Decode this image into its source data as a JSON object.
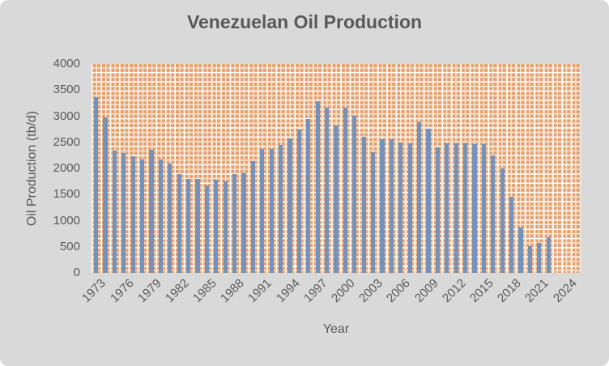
{
  "chart_data": {
    "type": "bar",
    "title": "Venezuelan Oil Production",
    "xlabel": "Year",
    "ylabel": "Oil Production (tb/d)",
    "ylim": [
      0,
      4000
    ],
    "ytick_interval": 500,
    "yticks": [
      0,
      500,
      1000,
      1500,
      2000,
      2500,
      3000,
      3500,
      4000
    ],
    "xtick_label_every": 3,
    "xtick_labels": [
      "1973",
      "1976",
      "1979",
      "1982",
      "1985",
      "1988",
      "1991",
      "1994",
      "1997",
      "2000",
      "2003",
      "2006",
      "2009",
      "2012",
      "2015",
      "2018",
      "2021",
      "2024"
    ],
    "categories": [
      1973,
      1974,
      1975,
      1976,
      1977,
      1978,
      1979,
      1980,
      1981,
      1982,
      1983,
      1984,
      1985,
      1986,
      1987,
      1988,
      1989,
      1990,
      1991,
      1992,
      1993,
      1994,
      1995,
      1996,
      1997,
      1998,
      1999,
      2000,
      2001,
      2002,
      2003,
      2004,
      2005,
      2006,
      2007,
      2008,
      2009,
      2010,
      2011,
      2012,
      2013,
      2014,
      2015,
      2016,
      2017,
      2018,
      2019,
      2020,
      2021,
      2022,
      2023,
      2024
    ],
    "values": [
      3366,
      2976,
      2346,
      2294,
      2238,
      2166,
      2356,
      2170,
      2100,
      1895,
      1800,
      1798,
      1677,
      1787,
      1752,
      1900,
      1907,
      2135,
      2375,
      2371,
      2450,
      2570,
      2750,
      2940,
      3280,
      3165,
      2825,
      3165,
      3010,
      2600,
      2305,
      2560,
      2565,
      2500,
      2487,
      2880,
      2755,
      2400,
      2480,
      2480,
      2480,
      2470,
      2470,
      2250,
      2000,
      1460,
      870,
      505,
      570,
      690,
      null,
      null
    ],
    "legend": null,
    "gridlines": false,
    "plot_area_fill": "orange dotted-grid pattern"
  },
  "colors": {
    "chart_background": "#D9D9D9",
    "bar": "#7492BA",
    "pattern_square": "#E7A474",
    "pattern_line": "#F7EBD3",
    "pattern_bright_line": "#FFFDF6",
    "text": "#595959"
  }
}
